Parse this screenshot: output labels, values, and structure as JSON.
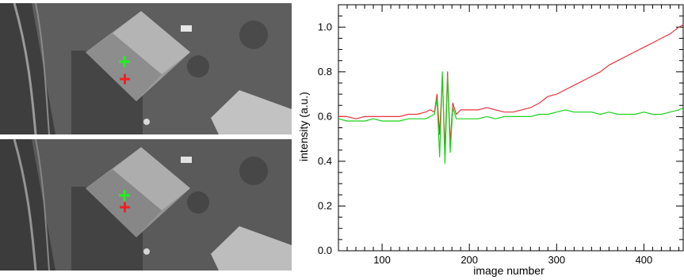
{
  "colors": {
    "red_series": "#e8323c",
    "green_series": "#19d219",
    "marker_green": "#22ee22",
    "marker_red": "#ee2222"
  },
  "images": [
    {
      "name": "aerial-image-top"
    },
    {
      "name": "aerial-image-bottom"
    }
  ],
  "chart_data": {
    "type": "line",
    "xlabel": "image number",
    "ylabel": "intensity (a.u.)",
    "xlim": [
      50,
      445
    ],
    "ylim": [
      0.0,
      1.1
    ],
    "xticks": [
      100,
      200,
      300,
      400
    ],
    "xtick_labels": [
      "100",
      "200",
      "300",
      "400"
    ],
    "yticks": [
      0.0,
      0.2,
      0.4,
      0.6,
      0.8,
      1.0
    ],
    "ytick_labels": [
      "0.0",
      "0.2",
      "0.4",
      "0.6",
      "0.8",
      "1.0"
    ],
    "grid": false,
    "series": [
      {
        "color": "#e8323c",
        "x": [
          50,
          60,
          70,
          80,
          90,
          100,
          110,
          120,
          130,
          140,
          150,
          155,
          160,
          163,
          166,
          169,
          172,
          175,
          178,
          181,
          185,
          190,
          200,
          210,
          220,
          230,
          240,
          250,
          260,
          270,
          280,
          290,
          300,
          310,
          320,
          330,
          340,
          350,
          360,
          370,
          380,
          390,
          400,
          410,
          420,
          430,
          440,
          445
        ],
        "y": [
          0.6,
          0.6,
          0.59,
          0.6,
          0.6,
          0.6,
          0.6,
          0.6,
          0.61,
          0.61,
          0.62,
          0.63,
          0.62,
          0.7,
          0.52,
          0.78,
          0.45,
          0.8,
          0.48,
          0.66,
          0.61,
          0.63,
          0.63,
          0.63,
          0.64,
          0.63,
          0.62,
          0.62,
          0.63,
          0.64,
          0.66,
          0.69,
          0.7,
          0.72,
          0.74,
          0.76,
          0.78,
          0.8,
          0.83,
          0.85,
          0.87,
          0.89,
          0.91,
          0.93,
          0.95,
          0.97,
          1.0,
          1.01
        ]
      },
      {
        "color": "#19d219",
        "x": [
          50,
          60,
          70,
          80,
          90,
          100,
          110,
          120,
          130,
          140,
          150,
          155,
          160,
          163,
          166,
          169,
          172,
          175,
          178,
          181,
          185,
          190,
          200,
          210,
          220,
          230,
          240,
          250,
          260,
          270,
          280,
          290,
          300,
          310,
          320,
          330,
          340,
          350,
          360,
          370,
          380,
          390,
          400,
          410,
          420,
          430,
          440,
          445
        ],
        "y": [
          0.59,
          0.58,
          0.58,
          0.58,
          0.59,
          0.58,
          0.58,
          0.58,
          0.59,
          0.59,
          0.59,
          0.6,
          0.61,
          0.68,
          0.42,
          0.8,
          0.39,
          0.78,
          0.44,
          0.64,
          0.59,
          0.59,
          0.59,
          0.59,
          0.6,
          0.59,
          0.6,
          0.6,
          0.6,
          0.6,
          0.61,
          0.61,
          0.62,
          0.63,
          0.62,
          0.62,
          0.62,
          0.61,
          0.62,
          0.61,
          0.61,
          0.61,
          0.62,
          0.61,
          0.61,
          0.62,
          0.63,
          0.64
        ]
      }
    ]
  }
}
